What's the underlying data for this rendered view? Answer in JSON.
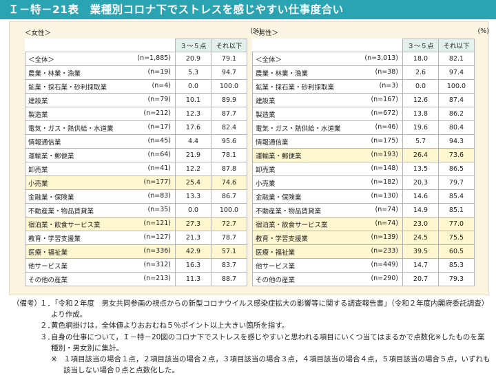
{
  "title": "Ｉ－特－21表　業種別コロナ下でストレスを感じやすい仕事度合い",
  "female": {
    "label": "＜女性＞",
    "unit": "(%)",
    "col_a": "３～５点",
    "col_b": "それ以下",
    "rows": [
      {
        "name": "＜全体＞",
        "n": "(n=1,885)",
        "a": "20.9",
        "b": "79.1",
        "hl": false
      },
      {
        "name": "農業・林業・漁業",
        "n": "(n=19)",
        "a": "5.3",
        "b": "94.7",
        "hl": false
      },
      {
        "name": "鉱業・採石業・砂利採取業",
        "n": "(n=4)",
        "a": "0.0",
        "b": "100.0",
        "hl": false
      },
      {
        "name": "建設業",
        "n": "(n=79)",
        "a": "10.1",
        "b": "89.9",
        "hl": false
      },
      {
        "name": "製造業",
        "n": "(n=212)",
        "a": "12.3",
        "b": "87.7",
        "hl": false
      },
      {
        "name": "電気・ガス・熱供給・水道業",
        "n": "(n=17)",
        "a": "17.6",
        "b": "82.4",
        "hl": false
      },
      {
        "name": "情報通信業",
        "n": "(n=45)",
        "a": "4.4",
        "b": "95.6",
        "hl": false
      },
      {
        "name": "運輸業・郵便業",
        "n": "(n=64)",
        "a": "21.9",
        "b": "78.1",
        "hl": false
      },
      {
        "name": "卸売業",
        "n": "(n=41)",
        "a": "12.2",
        "b": "87.8",
        "hl": false
      },
      {
        "name": "小売業",
        "n": "(n=177)",
        "a": "25.4",
        "b": "74.6",
        "hl": true
      },
      {
        "name": "金融業・保険業",
        "n": "(n=83)",
        "a": "13.3",
        "b": "86.7",
        "hl": false
      },
      {
        "name": "不動産業・物品賃貸業",
        "n": "(n=35)",
        "a": "0.0",
        "b": "100.0",
        "hl": false
      },
      {
        "name": "宿泊業・飲食サービス業",
        "n": "(n=121)",
        "a": "27.3",
        "b": "72.7",
        "hl": true
      },
      {
        "name": "教育・学習支援業",
        "n": "(n=127)",
        "a": "21.3",
        "b": "78.7",
        "hl": false
      },
      {
        "name": "医療・福祉業",
        "n": "(n=336)",
        "a": "42.9",
        "b": "57.1",
        "hl": true
      },
      {
        "name": "他サービス業",
        "n": "(n=312)",
        "a": "16.3",
        "b": "83.7",
        "hl": false
      },
      {
        "name": "その他の産業",
        "n": "(n=213)",
        "a": "11.3",
        "b": "88.7",
        "hl": false
      }
    ]
  },
  "male": {
    "label": "＜男性＞",
    "unit": "(%)",
    "col_a": "３～５点",
    "col_b": "それ以下",
    "rows": [
      {
        "name": "＜全体＞",
        "n": "(n=3,013)",
        "a": "18.0",
        "b": "82.1",
        "hl": false
      },
      {
        "name": "農業・林業・漁業",
        "n": "(n=38)",
        "a": "2.6",
        "b": "97.4",
        "hl": false
      },
      {
        "name": "鉱業・採石業・砂利採取業",
        "n": "(n=3)",
        "a": "0.0",
        "b": "100.0",
        "hl": false
      },
      {
        "name": "建設業",
        "n": "(n=167)",
        "a": "12.6",
        "b": "87.4",
        "hl": false
      },
      {
        "name": "製造業",
        "n": "(n=672)",
        "a": "13.8",
        "b": "86.2",
        "hl": false
      },
      {
        "name": "電気・ガス・熱供給・水道業",
        "n": "(n=46)",
        "a": "19.6",
        "b": "80.4",
        "hl": false
      },
      {
        "name": "情報通信業",
        "n": "(n=175)",
        "a": "5.7",
        "b": "94.3",
        "hl": false
      },
      {
        "name": "運輸業・郵便業",
        "n": "(n=193)",
        "a": "26.4",
        "b": "73.6",
        "hl": true
      },
      {
        "name": "卸売業",
        "n": "(n=148)",
        "a": "13.5",
        "b": "86.5",
        "hl": false
      },
      {
        "name": "小売業",
        "n": "(n=182)",
        "a": "20.3",
        "b": "79.7",
        "hl": false
      },
      {
        "name": "金融業・保険業",
        "n": "(n=130)",
        "a": "14.6",
        "b": "85.4",
        "hl": false
      },
      {
        "name": "不動産業・物品賃貸業",
        "n": "(n=74)",
        "a": "14.9",
        "b": "85.1",
        "hl": false
      },
      {
        "name": "宿泊業・飲食サービス業",
        "n": "(n=74)",
        "a": "23.0",
        "b": "77.0",
        "hl": true
      },
      {
        "name": "教育・学習支援業",
        "n": "(n=139)",
        "a": "24.5",
        "b": "75.5",
        "hl": true
      },
      {
        "name": "医療・福祉業",
        "n": "(n=233)",
        "a": "39.5",
        "b": "60.5",
        "hl": true
      },
      {
        "name": "他サービス業",
        "n": "(n=449)",
        "a": "14.7",
        "b": "85.3",
        "hl": false
      },
      {
        "name": "その他の産業",
        "n": "(n=290)",
        "a": "20.7",
        "b": "79.3",
        "hl": false
      }
    ]
  },
  "highlight_color": "#fff7cf",
  "header_color": "#e2f1ec",
  "title_color": "#2aa3b3",
  "notes": {
    "tag": "（備考）",
    "items": [
      {
        "num": "１．",
        "text": "「令和２年度　男女共同参画の視点からの新型コロナウイルス感染症拡大の影響等に関する調査報告書」（令和２年度内閣府委託調査）より作成。"
      },
      {
        "num": "２．",
        "text": "黄色網掛けは，全体値よりおおむね５％ポイント以上大きい箇所を指す。"
      },
      {
        "num": "３．",
        "text": "自身の仕事について，Ｉ－特－20図のコロナ下でストレスを感じやすいと思われる項目にいくつ当てはまるかで点数化※したものを業種別・男女別に集計。"
      }
    ],
    "sub_mark": "※",
    "sub": "１項目該当の場合１点，２項目該当の場合２点，３項目該当の場合３点，４項目該当の場合４点，５項目該当の場合５点，いずれも該当しない場合０点と点数化した。"
  }
}
